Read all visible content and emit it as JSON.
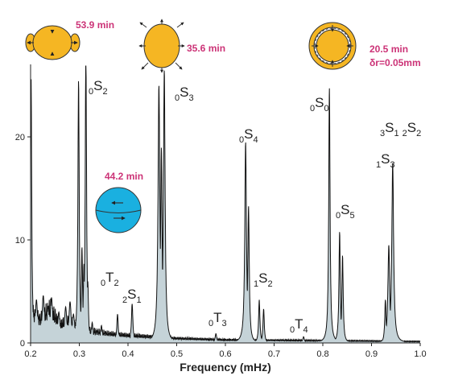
{
  "chart_data": {
    "type": "line",
    "title": "",
    "xlabel": "Frequency (mHz)",
    "ylabel": "",
    "xlim": [
      0.2,
      1.0
    ],
    "ylim": [
      0,
      27
    ],
    "x_ticks": [
      "0.2",
      "0.3",
      "0.4",
      "0.5",
      "0.6",
      "0.7",
      "0.8",
      "0.9",
      "1.0"
    ],
    "y_ticks": [
      "0",
      "10",
      "20"
    ],
    "grid": false,
    "legend": "none",
    "fill_color": "#c5d3d8",
    "line_color": "#111111",
    "noise_floor": [
      {
        "x": 0.2,
        "y": 4.0
      },
      {
        "x": 0.22,
        "y": 3.0
      },
      {
        "x": 0.24,
        "y": 4.5
      },
      {
        "x": 0.26,
        "y": 2.5
      },
      {
        "x": 0.28,
        "y": 2.8
      },
      {
        "x": 0.32,
        "y": 1.6
      },
      {
        "x": 0.36,
        "y": 1.2
      },
      {
        "x": 0.4,
        "y": 1.0
      },
      {
        "x": 0.45,
        "y": 0.8
      },
      {
        "x": 0.5,
        "y": 0.6
      },
      {
        "x": 0.55,
        "y": 0.5
      },
      {
        "x": 0.6,
        "y": 0.4
      },
      {
        "x": 0.7,
        "y": 0.35
      },
      {
        "x": 0.8,
        "y": 0.3
      },
      {
        "x": 0.9,
        "y": 0.25
      },
      {
        "x": 1.0,
        "y": 0.2
      }
    ],
    "peaks": [
      {
        "x": 0.201,
        "y": 26.0,
        "w": 0.0015
      },
      {
        "x": 0.212,
        "y": 4.2,
        "w": 0.003
      },
      {
        "x": 0.226,
        "y": 4.6,
        "w": 0.003
      },
      {
        "x": 0.236,
        "y": 3.5,
        "w": 0.003
      },
      {
        "x": 0.243,
        "y": 4.4,
        "w": 0.003
      },
      {
        "x": 0.258,
        "y": 3.0,
        "w": 0.003
      },
      {
        "x": 0.272,
        "y": 3.5,
        "w": 0.003
      },
      {
        "x": 0.281,
        "y": 4.0,
        "w": 0.003
      },
      {
        "x": 0.288,
        "y": 2.8,
        "w": 0.003
      },
      {
        "x": 0.2985,
        "y": 25.5,
        "w": 0.0016
      },
      {
        "x": 0.3055,
        "y": 9.3,
        "w": 0.0016
      },
      {
        "x": 0.3095,
        "y": 7.7,
        "w": 0.0016
      },
      {
        "x": 0.3135,
        "y": 28.3,
        "w": 0.0016
      },
      {
        "x": 0.3175,
        "y": 6.0,
        "w": 0.0016
      },
      {
        "x": 0.3265,
        "y": 2.0,
        "w": 0.002
      },
      {
        "x": 0.3455,
        "y": 1.7,
        "w": 0.002
      },
      {
        "x": 0.3785,
        "y": 2.8,
        "w": 0.0018
      },
      {
        "x": 0.4085,
        "y": 3.8,
        "w": 0.0018
      },
      {
        "x": 0.4635,
        "y": 25.0,
        "w": 0.0022
      },
      {
        "x": 0.4685,
        "y": 19.0,
        "w": 0.0018
      },
      {
        "x": 0.4745,
        "y": 26.5,
        "w": 0.002
      },
      {
        "x": 0.5805,
        "y": 0.9,
        "w": 0.002
      },
      {
        "x": 0.6415,
        "y": 19.5,
        "w": 0.002
      },
      {
        "x": 0.6475,
        "y": 13.3,
        "w": 0.0018
      },
      {
        "x": 0.6695,
        "y": 4.2,
        "w": 0.0016
      },
      {
        "x": 0.6785,
        "y": 3.3,
        "w": 0.0016
      },
      {
        "x": 0.7605,
        "y": 0.6,
        "w": 0.002
      },
      {
        "x": 0.8135,
        "y": 24.8,
        "w": 0.0016
      },
      {
        "x": 0.8345,
        "y": 10.8,
        "w": 0.0016
      },
      {
        "x": 0.8405,
        "y": 8.5,
        "w": 0.0016
      },
      {
        "x": 0.9285,
        "y": 4.2,
        "w": 0.0016
      },
      {
        "x": 0.9355,
        "y": 9.5,
        "w": 0.0022
      },
      {
        "x": 0.9435,
        "y": 17.5,
        "w": 0.0022
      }
    ]
  },
  "annotations": {
    "modes": [
      {
        "sub": "0",
        "main": "S",
        "idx": "2",
        "sub2": "",
        "main2": "",
        "idx2": ""
      },
      {
        "sub": "0",
        "main": "S",
        "idx": "3",
        "sub2": "",
        "main2": "",
        "idx2": ""
      },
      {
        "sub": "0",
        "main": "S",
        "idx": "4",
        "sub2": "",
        "main2": "",
        "idx2": ""
      },
      {
        "sub": "0",
        "main": "S",
        "idx": "0",
        "sub2": "",
        "main2": "",
        "idx2": ""
      },
      {
        "sub": "3",
        "main": "S",
        "idx": "1",
        "sub2": "2",
        "main2": "S",
        "idx2": "2"
      },
      {
        "sub": "1",
        "main": "S",
        "idx": "3",
        "sub2": "",
        "main2": "",
        "idx2": ""
      },
      {
        "sub": "0",
        "main": "S",
        "idx": "5",
        "sub2": "",
        "main2": "",
        "idx2": ""
      },
      {
        "sub": "1",
        "main": "S",
        "idx": "2",
        "sub2": "",
        "main2": "",
        "idx2": ""
      },
      {
        "sub": "0",
        "main": "T",
        "idx": "2",
        "sub2": "",
        "main2": "",
        "idx2": ""
      },
      {
        "sub": "2",
        "main": "S",
        "idx": "1",
        "sub2": "",
        "main2": "",
        "idx2": ""
      },
      {
        "sub": "0",
        "main": "T",
        "idx": "3",
        "sub2": "",
        "main2": "",
        "idx2": ""
      },
      {
        "sub": "0",
        "main": "T",
        "idx": "4",
        "sub2": "",
        "main2": "",
        "idx2": ""
      }
    ],
    "periods": [
      "53.9 min",
      "35.6  min",
      "44.2  min",
      "20.5  min"
    ],
    "delta_r": "δr=0.05mm",
    "colors": {
      "earth": "#f5b623",
      "torsional": "#1ab0e0",
      "annotation": "#cc3377"
    }
  }
}
